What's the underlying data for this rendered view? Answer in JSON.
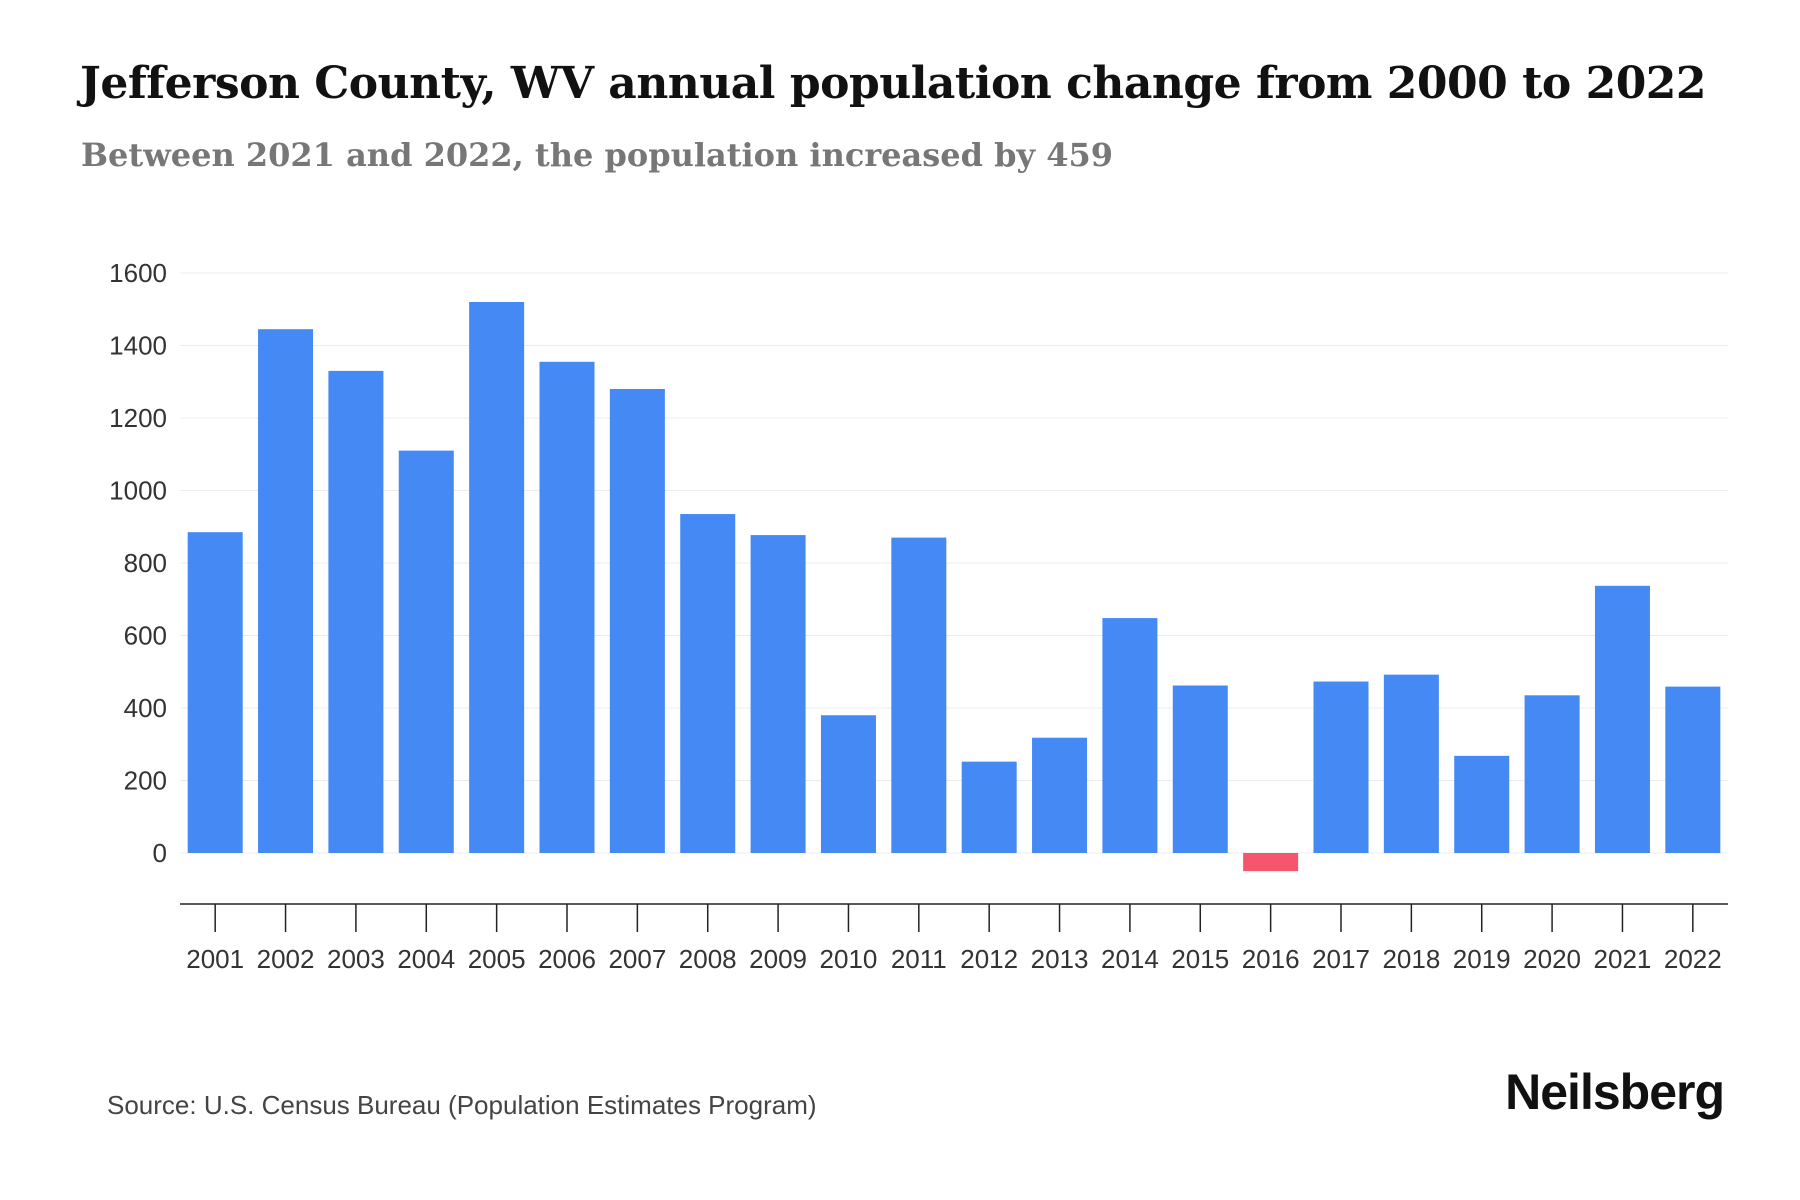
{
  "title": "Jefferson County, WV annual population change from 2000 to 2022",
  "subtitle": "Between 2021 and 2022, the population increased by 459",
  "source": "Source: U.S. Census Bureau (Population Estimates Program)",
  "brand": "Neilsberg",
  "colors": {
    "positive": "#4589F5",
    "negative": "#F5566E",
    "grid": "#ececec",
    "axis": "#222222",
    "tick_text": "#333333"
  },
  "chart_data": {
    "type": "bar",
    "title": "Jefferson County, WV annual population change from 2000 to 2022",
    "xlabel": "",
    "ylabel": "",
    "ylim": [
      -80,
      1600
    ],
    "yticks": [
      0,
      200,
      400,
      600,
      800,
      1000,
      1200,
      1400,
      1600
    ],
    "grid": true,
    "categories": [
      "2001",
      "2002",
      "2003",
      "2004",
      "2005",
      "2006",
      "2007",
      "2008",
      "2009",
      "2010",
      "2011",
      "2012",
      "2013",
      "2014",
      "2015",
      "2016",
      "2017",
      "2018",
      "2019",
      "2020",
      "2021",
      "2022"
    ],
    "values": [
      885,
      1445,
      1330,
      1110,
      1520,
      1355,
      1280,
      935,
      877,
      380,
      870,
      252,
      318,
      648,
      462,
      -50,
      473,
      492,
      268,
      435,
      737,
      459
    ]
  }
}
